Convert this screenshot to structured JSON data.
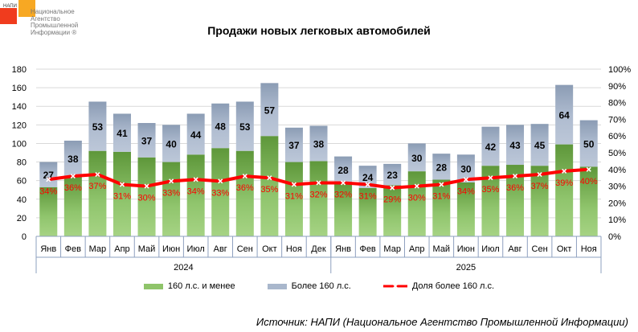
{
  "logo": {
    "small": "НАПИ",
    "text": [
      "Национальное",
      "Агентство",
      "Промышленной",
      "Информации ®"
    ]
  },
  "chart_data": {
    "type": "bar",
    "title": "Продажи новых легковых автомобилей",
    "categories": [
      "Янв",
      "Фев",
      "Мар",
      "Апр",
      "Май",
      "Июн",
      "Июл",
      "Авг",
      "Сен",
      "Окт",
      "Ноя",
      "Дек",
      "Янв",
      "Фев",
      "Мар",
      "Апр",
      "Май",
      "Июн",
      "Июл",
      "Авг",
      "Сен",
      "Окт",
      "Ноя"
    ],
    "years": [
      {
        "label": "2024",
        "count": 12
      },
      {
        "label": "2025",
        "count": 11
      }
    ],
    "series": [
      {
        "name": "160 л.с. и менее",
        "type": "bar",
        "values": [
          53,
          65,
          92,
          91,
          85,
          80,
          88,
          95,
          92,
          108,
          80,
          81,
          58,
          52,
          55,
          70,
          61,
          58,
          76,
          77,
          76,
          99,
          75
        ],
        "color": "#8fc46a"
      },
      {
        "name": "Более 160 л.с.",
        "type": "bar",
        "values": [
          27,
          38,
          53,
          41,
          37,
          40,
          44,
          48,
          53,
          57,
          37,
          38,
          28,
          24,
          23,
          30,
          28,
          30,
          42,
          43,
          45,
          64,
          50
        ],
        "color": "#a9b7cc"
      },
      {
        "name": "Доля более 160 л.с.",
        "type": "line",
        "axis": "right",
        "values": [
          34,
          36,
          37,
          31,
          30,
          33,
          34,
          33,
          36,
          35,
          31,
          32,
          32,
          31,
          29,
          30,
          31,
          34,
          35,
          36,
          37,
          39,
          40
        ],
        "color": "#ff0000"
      }
    ],
    "ylim": [
      0,
      180
    ],
    "yticks": [
      "0",
      "20",
      "40",
      "60",
      "80",
      "100",
      "120",
      "140",
      "160",
      "180"
    ],
    "y2lim": [
      0,
      100
    ],
    "y2ticks": [
      "0%",
      "10%",
      "20%",
      "30%",
      "40%",
      "50%",
      "60%",
      "70%",
      "80%",
      "90%",
      "100%"
    ],
    "grid": true,
    "legend": "bottom"
  },
  "source": "Источник: НАПИ (Национальное Агентство Промышленной Информации)"
}
